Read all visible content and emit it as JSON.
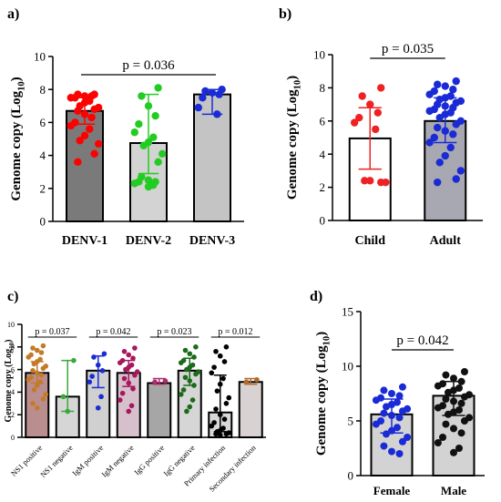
{
  "panels": {
    "a": "a)",
    "b": "b)",
    "c": "c)",
    "d": "d)"
  },
  "chart_data": [
    {
      "panel": "a)",
      "type": "bar",
      "ylabel": "Genome copy (Log",
      "ylabel_sub": "10",
      "ylabel_close": ")",
      "ylim": [
        0,
        10
      ],
      "yticks": [
        0,
        2,
        4,
        6,
        8,
        10
      ],
      "categories": [
        "DENV-1",
        "DENV-2",
        "DENV-3"
      ],
      "values": [
        6.7,
        4.75,
        7.7
      ],
      "error": [
        [
          5.9,
          7.5
        ],
        [
          2.9,
          7.7
        ],
        [
          6.5,
          8.0
        ]
      ],
      "bar_colors": [
        "#7a7a7a",
        "#d3d3d3",
        "#c4c4c4"
      ],
      "point_colors": [
        "#ff0000",
        "#22cc22",
        "#1a2bd6"
      ],
      "points": [
        [
          7.7,
          7.7,
          7.6,
          7.6,
          7.5,
          7.5,
          7.3,
          7.2,
          7.0,
          6.9,
          6.8,
          6.7,
          6.5,
          6.3,
          6.0,
          5.8,
          5.6,
          5.2,
          4.9,
          4.7,
          4.1,
          3.6
        ],
        [
          8.1,
          7.6,
          7.0,
          6.4,
          5.9,
          5.4,
          5.1,
          4.8,
          4.6,
          4.1,
          3.6,
          2.7,
          2.5,
          2.4,
          2.4,
          2.3,
          2.2,
          2.1
        ],
        [
          8.0,
          7.9,
          7.8,
          7.7,
          7.5,
          6.9,
          6.5
        ]
      ],
      "annotation": "p = 0.036",
      "grid": false
    },
    {
      "panel": "b)",
      "type": "bar",
      "ylabel": "Genome copy (Log",
      "ylabel_sub": "10",
      "ylabel_close": ")",
      "ylim": [
        0,
        10
      ],
      "yticks": [
        0,
        2,
        4,
        6,
        8,
        10
      ],
      "categories": [
        "Child",
        "Adult"
      ],
      "values": [
        4.95,
        6.0
      ],
      "error": [
        [
          3.1,
          6.8
        ],
        [
          4.7,
          7.4
        ]
      ],
      "bar_colors": [
        "#ffffff",
        "#a8a8b2"
      ],
      "point_colors": [
        "#ee2222",
        "#1a2bd6"
      ],
      "points": [
        [
          8.0,
          7.5,
          7.0,
          6.5,
          6.2,
          5.9,
          5.5,
          2.4,
          2.4,
          2.3,
          2.3
        ],
        [
          8.4,
          8.2,
          8.1,
          7.9,
          7.8,
          7.6,
          7.5,
          7.4,
          7.3,
          7.2,
          7.1,
          7.0,
          6.9,
          6.8,
          6.7,
          6.6,
          6.5,
          6.4,
          6.2,
          6.0,
          5.8,
          5.6,
          5.4,
          5.2,
          5.0,
          4.7,
          4.4,
          3.9,
          3.5,
          3.0,
          2.5,
          2.3
        ]
      ],
      "annotation": "p = 0.035",
      "grid": false
    },
    {
      "panel": "c)",
      "type": "bar",
      "ylabel": "Genome copy (Log",
      "ylabel_sub": "10",
      "ylabel_close": ")",
      "ylim": [
        0,
        10
      ],
      "yticks": [
        0,
        2,
        4,
        6,
        8,
        10
      ],
      "categories": [
        "NS1 positive",
        "NS1 negative",
        "IgM positive",
        "IgM negative",
        "IgG positive",
        "IgG negative",
        "Primary infection",
        "Secondary infection"
      ],
      "values": [
        5.7,
        3.6,
        5.9,
        5.7,
        4.8,
        5.9,
        2.2,
        4.9
      ],
      "error": [
        [
          4.8,
          6.7
        ],
        [
          2.3,
          6.8
        ],
        [
          4.4,
          7.2
        ],
        [
          4.5,
          6.8
        ],
        [
          4.7,
          5.2
        ],
        [
          4.6,
          7.0
        ],
        [
          0.5,
          5.5
        ],
        [
          4.7,
          5.2
        ]
      ],
      "bar_colors": [
        "#ba8e8e",
        "#d6d6d6",
        "#d0d0d0",
        "#d6c0cc",
        "#a6a6a6",
        "#d6d6d6",
        "#d8d8d8",
        "#d9d2d2"
      ],
      "point_colors": [
        "#c47a2a",
        "#3aa93a",
        "#1a2bd6",
        "#a8175e",
        "#b02a6e",
        "#1a6b1a",
        "#000000",
        "#b06a2a"
      ],
      "points": [
        [
          8.1,
          7.9,
          7.7,
          7.5,
          7.3,
          7.1,
          6.9,
          6.7,
          6.5,
          6.3,
          6.1,
          5.9,
          5.7,
          5.5,
          5.3,
          5.1,
          4.9,
          4.6,
          4.2,
          3.8,
          3.4,
          3.0,
          2.6
        ],
        [
          6.8,
          3.6,
          2.3
        ],
        [
          7.4,
          7.1,
          6.4,
          5.9,
          5.4,
          4.9,
          3.6,
          2.6
        ],
        [
          7.9,
          7.6,
          7.3,
          7.0,
          6.8,
          6.6,
          6.4,
          6.2,
          6.0,
          5.8,
          5.5,
          5.2,
          4.8,
          4.3,
          3.9,
          3.3,
          2.8,
          2.3
        ],
        [
          5.0,
          4.9
        ],
        [
          8.0,
          7.7,
          7.4,
          7.1,
          6.8,
          6.6,
          6.4,
          6.2,
          6.0,
          5.8,
          5.6,
          5.3,
          5.0,
          4.6,
          4.2,
          3.8,
          3.3,
          2.7,
          2.3
        ],
        [
          8.0,
          7.6,
          7.2,
          6.7,
          6.2,
          5.7,
          5.2,
          4.7,
          4.1,
          3.5,
          3.0,
          2.5,
          2.0,
          1.6,
          1.3,
          1.0,
          0.8,
          0.6,
          0.5,
          0.4,
          0.3,
          0.3,
          0.2
        ],
        [
          5.1,
          4.9
        ]
      ],
      "brackets": [
        {
          "from": 0,
          "to": 1,
          "label": "p = 0.037"
        },
        {
          "from": 2,
          "to": 3,
          "label": "p = 0.042"
        },
        {
          "from": 4,
          "to": 5,
          "label": "p = 0.023"
        },
        {
          "from": 6,
          "to": 7,
          "label": "p = 0.012"
        }
      ],
      "grid": false
    },
    {
      "panel": "d)",
      "type": "bar",
      "ylabel": "Genome copy (Log",
      "ylabel_sub": "10",
      "ylabel_close": ")",
      "ylim": [
        0,
        15
      ],
      "yticks": [
        0,
        5,
        10,
        15
      ],
      "categories": [
        "Female",
        "Male"
      ],
      "values": [
        5.6,
        7.3
      ],
      "error": [
        [
          3.9,
          7.0
        ],
        [
          5.5,
          8.6
        ]
      ],
      "bar_colors": [
        "#d3d3d3",
        "#d3d3d3"
      ],
      "point_colors": [
        "#1a2bd6",
        "#111111"
      ],
      "points": [
        [
          8.1,
          7.8,
          7.5,
          7.3,
          7.1,
          6.9,
          6.7,
          6.5,
          6.3,
          6.1,
          5.9,
          5.7,
          5.5,
          5.3,
          5.0,
          4.7,
          4.4,
          4.1,
          3.8,
          3.5,
          3.1,
          2.7,
          2.2,
          2.0
        ],
        [
          9.5,
          9.2,
          8.9,
          8.6,
          8.4,
          8.2,
          8.0,
          7.8,
          7.6,
          7.4,
          7.2,
          7.0,
          6.8,
          6.6,
          6.4,
          6.2,
          6.0,
          5.8,
          5.6,
          5.3,
          5.0,
          4.7,
          4.3,
          3.9,
          3.5,
          3.0,
          2.5,
          2.1
        ]
      ],
      "annotation": "p = 0.042",
      "grid": false
    }
  ]
}
